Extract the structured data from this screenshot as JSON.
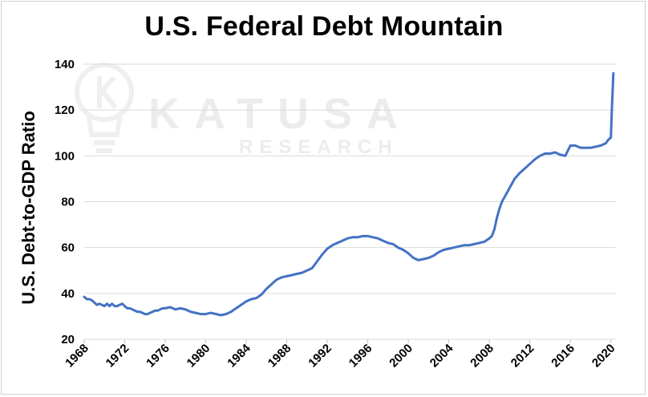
{
  "watermark": {
    "brand": "KATUSA",
    "sub": "RESEARCH",
    "logo_icon": "lightbulb-k-logo-icon"
  },
  "chart_data": {
    "type": "line",
    "title": "U.S. Federal Debt Mountain",
    "xlabel": "",
    "ylabel": "U.S. Debt-to-GDP Ratio",
    "xlim": [
      1968,
      2020.5
    ],
    "ylim": [
      20,
      140
    ],
    "yticks": [
      20,
      40,
      60,
      80,
      100,
      120,
      140
    ],
    "xticks": [
      1968,
      1972,
      1976,
      1980,
      1984,
      1988,
      1992,
      1996,
      2000,
      2004,
      2008,
      2012,
      2016,
      2020
    ],
    "grid": "horizontal",
    "line_color": "#4472c4",
    "series": [
      {
        "x": [
          1968.0,
          1968.25,
          1968.5,
          1968.75,
          1969.0,
          1969.25,
          1969.5,
          1969.75,
          1970.0,
          1970.25,
          1970.5,
          1970.75,
          1971.0,
          1971.25,
          1971.5,
          1971.75,
          1972.0,
          1972.25,
          1972.5,
          1972.75,
          1973.0,
          1973.25,
          1973.5,
          1973.75,
          1974.0,
          1974.25,
          1974.5,
          1974.75,
          1975.0,
          1975.25,
          1975.5,
          1975.75,
          1976.0,
          1976.5,
          1977.0,
          1977.5,
          1978.0,
          1978.5,
          1979.0,
          1979.5,
          1980.0,
          1980.5,
          1981.0,
          1981.5,
          1982.0,
          1982.5,
          1983.0,
          1983.5,
          1984.0,
          1984.5,
          1985.0,
          1985.5,
          1986.0,
          1986.5,
          1987.0,
          1987.5,
          1988.0,
          1988.5,
          1989.0,
          1989.5,
          1990.0,
          1990.5,
          1991.0,
          1991.5,
          1992.0,
          1992.5,
          1993.0,
          1993.5,
          1994.0,
          1994.5,
          1995.0,
          1995.5,
          1996.0,
          1996.5,
          1997.0,
          1997.5,
          1998.0,
          1998.5,
          1999.0,
          1999.5,
          2000.0,
          2000.5,
          2001.0,
          2001.5,
          2002.0,
          2002.5,
          2003.0,
          2003.5,
          2004.0,
          2004.5,
          2005.0,
          2005.5,
          2006.0,
          2006.5,
          2007.0,
          2007.5,
          2008.0,
          2008.25,
          2008.5,
          2008.75,
          2009.0,
          2009.25,
          2009.5,
          2010.0,
          2010.5,
          2011.0,
          2011.5,
          2012.0,
          2012.5,
          2013.0,
          2013.5,
          2014.0,
          2014.5,
          2015.0,
          2015.5,
          2016.0,
          2016.5,
          2017.0,
          2017.5,
          2018.0,
          2018.5,
          2019.0,
          2019.5,
          2019.75,
          2020.0,
          2020.1,
          2020.25
        ],
        "y": [
          38.5,
          37.5,
          37.5,
          37.0,
          36.0,
          35.0,
          35.5,
          35.0,
          34.5,
          35.5,
          34.5,
          35.5,
          34.5,
          34.5,
          35.0,
          35.5,
          34.5,
          33.5,
          33.5,
          33.0,
          32.5,
          32.0,
          32.0,
          31.5,
          31.0,
          31.0,
          31.5,
          32.0,
          32.5,
          32.5,
          33.0,
          33.5,
          33.5,
          34.0,
          33.0,
          33.5,
          33.0,
          32.0,
          31.5,
          31.0,
          31.0,
          31.5,
          31.0,
          30.5,
          31.0,
          32.0,
          33.5,
          35.0,
          36.5,
          37.5,
          38.0,
          39.5,
          42.0,
          44.0,
          46.0,
          47.0,
          47.5,
          48.0,
          48.5,
          49.0,
          50.0,
          51.0,
          54.0,
          57.0,
          59.5,
          61.0,
          62.0,
          63.0,
          64.0,
          64.5,
          64.5,
          65.0,
          65.0,
          64.5,
          64.0,
          63.0,
          62.0,
          61.5,
          60.0,
          59.0,
          57.5,
          55.5,
          54.5,
          55.0,
          55.5,
          56.5,
          58.0,
          59.0,
          59.5,
          60.0,
          60.5,
          61.0,
          61.0,
          61.5,
          62.0,
          62.5,
          64.0,
          65.0,
          68.0,
          73.0,
          77.0,
          80.0,
          82.0,
          86.0,
          90.0,
          92.5,
          94.5,
          96.5,
          98.5,
          100.0,
          101.0,
          101.0,
          101.5,
          100.5,
          100.0,
          104.5,
          104.5,
          103.5,
          103.5,
          103.5,
          104.0,
          104.5,
          105.5,
          107.0,
          108.0,
          120.0,
          136.0
        ]
      }
    ]
  }
}
